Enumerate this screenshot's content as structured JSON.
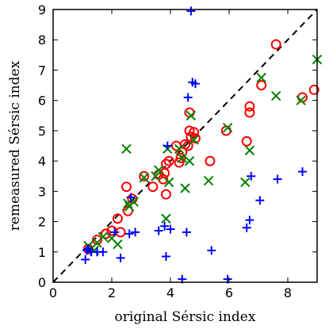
{
  "chart_data": {
    "type": "scatter",
    "title": "",
    "xlabel": "original Sérsic index",
    "ylabel": "remeasured Sérsic index",
    "xlim": [
      0,
      9
    ],
    "ylim": [
      0,
      9
    ],
    "xticks": [
      "0",
      "2",
      "4",
      "6",
      "8"
    ],
    "yticks": [
      "0",
      "1",
      "2",
      "3",
      "4",
      "5",
      "6",
      "7",
      "8",
      "9"
    ],
    "grid": false,
    "legend": "none",
    "reference_line": {
      "style": "dashed",
      "color": "#000000",
      "from": [
        0,
        0
      ],
      "to": [
        9,
        9
      ]
    },
    "series": [
      {
        "marker": "circle",
        "color": "#ff0000",
        "points": [
          [
            1.2,
            1.1
          ],
          [
            1.5,
            1.4
          ],
          [
            1.8,
            1.6
          ],
          [
            2.0,
            1.7
          ],
          [
            2.2,
            2.1
          ],
          [
            2.3,
            1.65
          ],
          [
            2.5,
            3.15
          ],
          [
            2.55,
            2.35
          ],
          [
            2.7,
            2.75
          ],
          [
            3.1,
            3.5
          ],
          [
            3.4,
            3.15
          ],
          [
            3.6,
            3.55
          ],
          [
            3.75,
            3.4
          ],
          [
            3.8,
            3.6
          ],
          [
            3.85,
            2.9
          ],
          [
            3.85,
            3.9
          ],
          [
            3.95,
            4.0
          ],
          [
            4.2,
            4.5
          ],
          [
            4.3,
            3.95
          ],
          [
            4.35,
            4.1
          ],
          [
            4.4,
            4.3
          ],
          [
            4.5,
            4.55
          ],
          [
            4.6,
            4.5
          ],
          [
            4.65,
            5.0
          ],
          [
            4.65,
            5.6
          ],
          [
            4.7,
            4.8
          ],
          [
            4.8,
            4.95
          ],
          [
            4.85,
            4.75
          ],
          [
            5.35,
            4.0
          ],
          [
            5.9,
            5.0
          ],
          [
            6.6,
            4.65
          ],
          [
            6.7,
            5.6
          ],
          [
            6.7,
            5.8
          ],
          [
            7.1,
            6.5
          ],
          [
            7.6,
            7.85
          ],
          [
            8.5,
            6.1
          ],
          [
            8.9,
            6.35
          ]
        ]
      },
      {
        "marker": "x",
        "color": "#008000",
        "points": [
          [
            1.2,
            1.2
          ],
          [
            1.4,
            1.05
          ],
          [
            1.5,
            1.3
          ],
          [
            1.7,
            1.5
          ],
          [
            2.0,
            1.45
          ],
          [
            2.2,
            1.25
          ],
          [
            2.5,
            4.4
          ],
          [
            2.55,
            2.6
          ],
          [
            2.6,
            2.5
          ],
          [
            2.75,
            2.65
          ],
          [
            3.1,
            3.45
          ],
          [
            3.5,
            3.5
          ],
          [
            3.6,
            3.7
          ],
          [
            3.85,
            2.1
          ],
          [
            3.9,
            4.4
          ],
          [
            3.95,
            3.3
          ],
          [
            4.3,
            4.4
          ],
          [
            4.4,
            4.1
          ],
          [
            4.5,
            3.1
          ],
          [
            4.65,
            4.0
          ],
          [
            4.7,
            5.5
          ],
          [
            4.8,
            4.7
          ],
          [
            5.3,
            3.35
          ],
          [
            5.95,
            5.1
          ],
          [
            6.55,
            3.3
          ],
          [
            6.7,
            4.35
          ],
          [
            7.1,
            6.75
          ],
          [
            7.6,
            6.15
          ],
          [
            8.45,
            6.0
          ],
          [
            9.0,
            7.35
          ]
        ]
      },
      {
        "marker": "plus",
        "color": "#0000ff",
        "points": [
          [
            1.1,
            0.75
          ],
          [
            1.15,
            1.05
          ],
          [
            1.2,
            1.1
          ],
          [
            1.3,
            1.0
          ],
          [
            1.5,
            1.0
          ],
          [
            1.7,
            1.0
          ],
          [
            2.1,
            1.65
          ],
          [
            2.3,
            0.8
          ],
          [
            2.6,
            1.6
          ],
          [
            2.65,
            2.8
          ],
          [
            2.8,
            1.65
          ],
          [
            3.6,
            1.7
          ],
          [
            3.8,
            1.85
          ],
          [
            3.85,
            0.85
          ],
          [
            3.9,
            4.5
          ],
          [
            4.0,
            1.75
          ],
          [
            4.4,
            0.1
          ],
          [
            4.55,
            1.65
          ],
          [
            4.6,
            6.1
          ],
          [
            4.7,
            8.95
          ],
          [
            4.75,
            6.6
          ],
          [
            4.85,
            6.55
          ],
          [
            5.4,
            1.05
          ],
          [
            5.95,
            0.1
          ],
          [
            6.6,
            1.8
          ],
          [
            6.7,
            2.05
          ],
          [
            6.75,
            3.5
          ],
          [
            7.05,
            2.7
          ],
          [
            7.65,
            3.4
          ],
          [
            8.5,
            3.65
          ]
        ]
      }
    ]
  }
}
